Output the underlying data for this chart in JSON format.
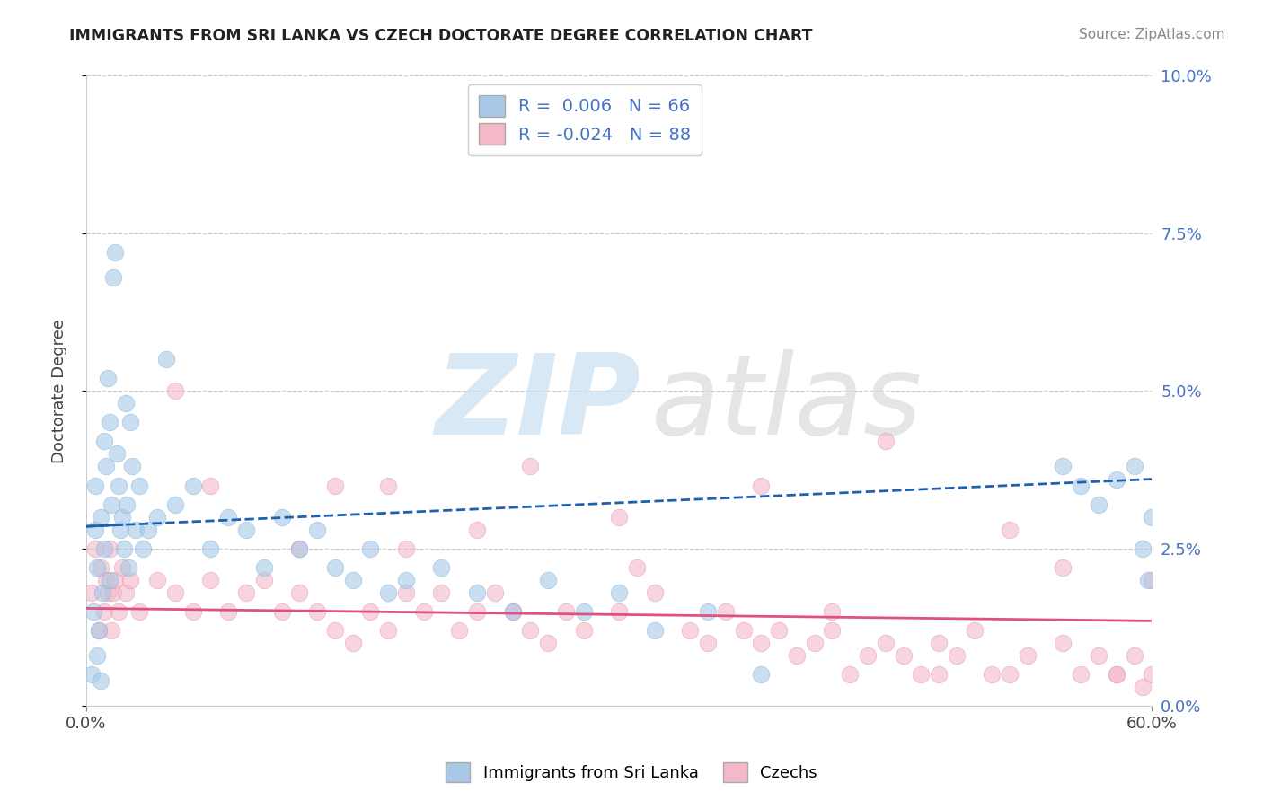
{
  "title": "IMMIGRANTS FROM SRI LANKA VS CZECH DOCTORATE DEGREE CORRELATION CHART",
  "source": "Source: ZipAtlas.com",
  "ylabel_label": "Doctorate Degree",
  "legend_label1": "Immigrants from Sri Lanka",
  "legend_label2": "Czechs",
  "r1": "0.006",
  "n1": "66",
  "r2": "-0.024",
  "n2": "88",
  "blue_color": "#a8c8e8",
  "blue_edge_color": "#7bafd4",
  "pink_color": "#f4b8c8",
  "pink_edge_color": "#e090a8",
  "blue_line_color": "#2060b0",
  "pink_line_color": "#e05080",
  "xlim": [
    0,
    60
  ],
  "ylim": [
    0,
    10
  ],
  "xtick_positions": [
    0,
    60
  ],
  "xtick_labels": [
    "0.0%",
    "60.0%"
  ],
  "ytick_positions": [
    0,
    2.5,
    5.0,
    7.5,
    10.0
  ],
  "ytick_labels": [
    "0.0%",
    "2.5%",
    "5.0%",
    "7.5%",
    "10.0%"
  ],
  "blue_trend_x": [
    0,
    60
  ],
  "blue_trend_y": [
    2.85,
    3.6
  ],
  "pink_trend_x": [
    0,
    60
  ],
  "pink_trend_y": [
    1.55,
    1.35
  ],
  "blue_scatter_x": [
    0.3,
    0.4,
    0.5,
    0.5,
    0.6,
    0.6,
    0.7,
    0.8,
    0.8,
    0.9,
    1.0,
    1.0,
    1.1,
    1.2,
    1.3,
    1.3,
    1.4,
    1.5,
    1.6,
    1.7,
    1.8,
    1.9,
    2.0,
    2.1,
    2.2,
    2.3,
    2.4,
    2.5,
    2.6,
    2.8,
    3.0,
    3.2,
    3.5,
    4.0,
    4.5,
    5.0,
    6.0,
    7.0,
    8.0,
    9.0,
    10.0,
    11.0,
    12.0,
    13.0,
    14.0,
    15.0,
    16.0,
    17.0,
    18.0,
    20.0,
    22.0,
    24.0,
    26.0,
    28.0,
    30.0,
    32.0,
    35.0,
    38.0,
    55.0,
    56.0,
    57.0,
    58.0,
    59.0,
    59.5,
    59.8,
    60.0
  ],
  "blue_scatter_y": [
    0.5,
    1.5,
    2.8,
    3.5,
    0.8,
    2.2,
    1.2,
    0.4,
    3.0,
    1.8,
    2.5,
    4.2,
    3.8,
    5.2,
    4.5,
    2.0,
    3.2,
    6.8,
    7.2,
    4.0,
    3.5,
    2.8,
    3.0,
    2.5,
    4.8,
    3.2,
    2.2,
    4.5,
    3.8,
    2.8,
    3.5,
    2.5,
    2.8,
    3.0,
    5.5,
    3.2,
    3.5,
    2.5,
    3.0,
    2.8,
    2.2,
    3.0,
    2.5,
    2.8,
    2.2,
    2.0,
    2.5,
    1.8,
    2.0,
    2.2,
    1.8,
    1.5,
    2.0,
    1.5,
    1.8,
    1.2,
    1.5,
    0.5,
    3.8,
    3.5,
    3.2,
    3.6,
    3.8,
    2.5,
    2.0,
    3.0
  ],
  "pink_scatter_x": [
    0.3,
    0.5,
    0.7,
    0.8,
    1.0,
    1.1,
    1.2,
    1.3,
    1.4,
    1.5,
    1.6,
    1.8,
    2.0,
    2.2,
    2.5,
    3.0,
    4.0,
    5.0,
    6.0,
    7.0,
    8.0,
    9.0,
    10.0,
    11.0,
    12.0,
    13.0,
    14.0,
    15.0,
    16.0,
    17.0,
    18.0,
    19.0,
    20.0,
    21.0,
    22.0,
    23.0,
    24.0,
    25.0,
    26.0,
    27.0,
    28.0,
    30.0,
    32.0,
    34.0,
    35.0,
    36.0,
    37.0,
    38.0,
    39.0,
    40.0,
    41.0,
    42.0,
    43.0,
    44.0,
    45.0,
    46.0,
    47.0,
    48.0,
    49.0,
    50.0,
    51.0,
    52.0,
    53.0,
    55.0,
    56.0,
    57.0,
    58.0,
    59.0,
    59.5,
    60.0,
    25.0,
    38.0,
    45.0,
    52.0,
    30.0,
    14.0,
    18.0,
    7.0,
    22.0,
    12.0,
    5.0,
    17.0,
    31.0,
    42.0,
    48.0,
    55.0,
    58.0,
    60.0
  ],
  "pink_scatter_y": [
    1.8,
    2.5,
    1.2,
    2.2,
    1.5,
    2.0,
    1.8,
    2.5,
    1.2,
    1.8,
    2.0,
    1.5,
    2.2,
    1.8,
    2.0,
    1.5,
    2.0,
    1.8,
    1.5,
    2.0,
    1.5,
    1.8,
    2.0,
    1.5,
    1.8,
    1.5,
    1.2,
    1.0,
    1.5,
    1.2,
    1.8,
    1.5,
    1.8,
    1.2,
    1.5,
    1.8,
    1.5,
    1.2,
    1.0,
    1.5,
    1.2,
    1.5,
    1.8,
    1.2,
    1.0,
    1.5,
    1.2,
    1.0,
    1.2,
    0.8,
    1.0,
    1.2,
    0.5,
    0.8,
    1.0,
    0.8,
    0.5,
    1.0,
    0.8,
    1.2,
    0.5,
    0.5,
    0.8,
    1.0,
    0.5,
    0.8,
    0.5,
    0.8,
    0.3,
    0.5,
    3.8,
    3.5,
    4.2,
    2.8,
    3.0,
    3.5,
    2.5,
    3.5,
    2.8,
    2.5,
    5.0,
    3.5,
    2.2,
    1.5,
    0.5,
    2.2,
    0.5,
    2.0
  ]
}
